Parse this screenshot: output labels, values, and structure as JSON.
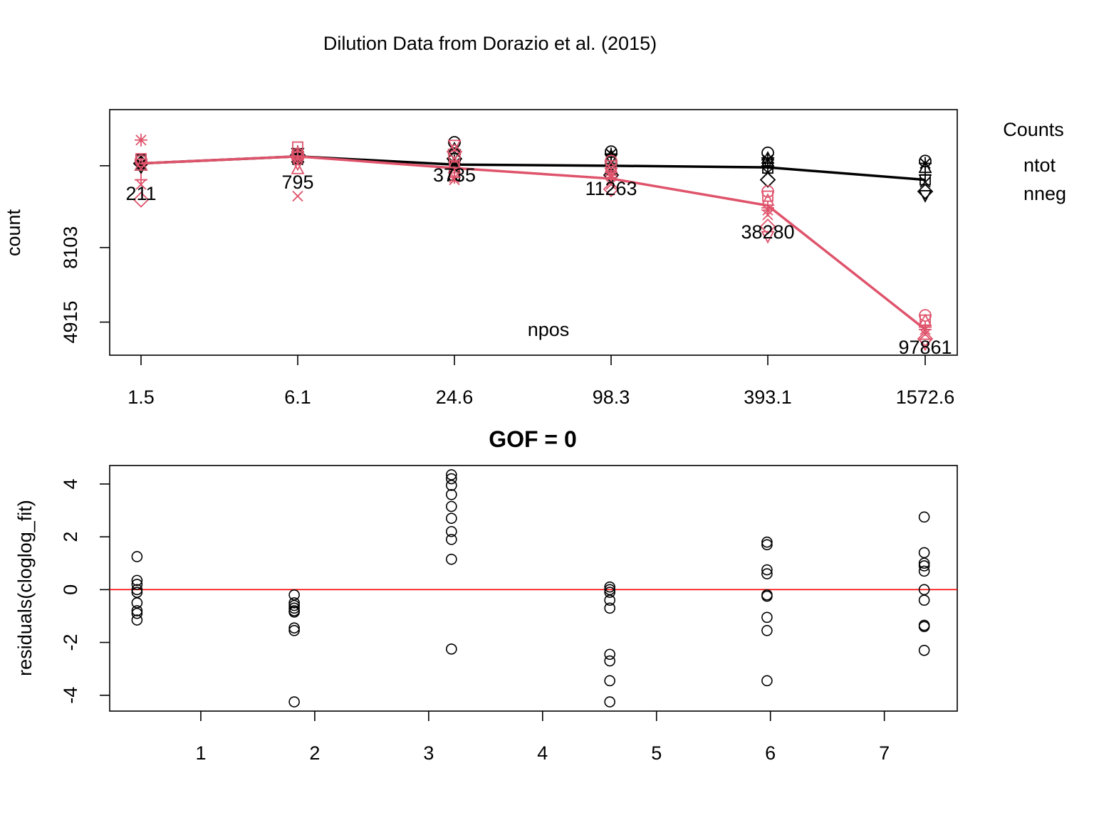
{
  "title": "Dilution Data from Dorazio et al. (2015)",
  "colors": {
    "ntot": "#000000",
    "nneg": "#DF536B",
    "zero_line": "#FF0000"
  },
  "chart_data": [
    {
      "type": "line",
      "ylabel": "count",
      "xlabel": "npos",
      "x_categories": [
        "1.5",
        "6.1",
        "24.6",
        "98.3",
        "393.1",
        "1572.6"
      ],
      "yticks": [
        4915,
        8103
      ],
      "ylim": [
        3500,
        14000
      ],
      "npos_labels": [
        "211",
        "795",
        "3735",
        "11263",
        "38280",
        "97861"
      ],
      "legend": {
        "title": "Counts",
        "placement": "right",
        "entries": [
          "ntot",
          "nneg"
        ]
      },
      "series": [
        {
          "name": "ntot",
          "line": [
            11700,
            12000,
            11650,
            11600,
            11530,
            11000
          ],
          "points": [
            [
              11800,
              11600,
              11750,
              11650,
              11700,
              11550,
              11850,
              11700
            ],
            [
              12100,
              11950,
              12200,
              11850,
              12050,
              12150,
              11900,
              12000
            ],
            [
              12600,
              12300,
              11800,
              11500,
              11900,
              12100,
              11200,
              11700
            ],
            [
              12200,
              12000,
              11700,
              11400,
              11200,
              11900,
              11600,
              12100
            ],
            [
              12150,
              11900,
              11600,
              11300,
              11000,
              11750,
              11500,
              11850
            ],
            [
              11800,
              11500,
              11200,
              10900,
              10500,
              10350,
              11000,
              11700
            ]
          ]
        },
        {
          "name": "nneg",
          "line": [
            11700,
            12000,
            11500,
            11050,
            9900,
            4600
          ],
          "points": [
            [
              11800,
              11600,
              11000,
              10800,
              10150,
              11700,
              11900,
              12700
            ],
            [
              12100,
              11450,
              12200,
              10300,
              12000,
              11700,
              12400,
              11900
            ],
            [
              12000,
              11700,
              11300,
              11000,
              12200,
              12500,
              11600,
              11100
            ],
            [
              11800,
              11500,
              11100,
              10800,
              10600,
              11300,
              11600,
              11200
            ],
            [
              10500,
              10100,
              9800,
              9500,
              9000,
              8600,
              10300,
              9700
            ],
            [
              5200,
              4950,
              4700,
              4400,
              4200,
              4000,
              5000,
              4600
            ]
          ]
        }
      ]
    },
    {
      "type": "scatter",
      "title": "GOF =  0",
      "ylabel": "residuals(cloglog_fit)",
      "xlabel": "",
      "xlim": [
        0.2,
        7.64
      ],
      "ylim": [
        -4.6,
        4.7
      ],
      "xticks": [
        1,
        2,
        3,
        4,
        5,
        6,
        7
      ],
      "yticks": [
        -4,
        -2,
        0,
        2,
        4
      ],
      "reference_line": 0,
      "groups": [
        {
          "x": 0.44,
          "y": [
            1.25,
            0.35,
            0.2,
            0.0,
            -0.1,
            -0.5,
            -0.8,
            -0.9,
            -1.15
          ]
        },
        {
          "x": 1.82,
          "y": [
            -0.2,
            -0.5,
            -0.6,
            -0.7,
            -0.8,
            -0.85,
            -1.45,
            -1.55,
            -4.25
          ]
        },
        {
          "x": 3.2,
          "y": [
            4.35,
            4.2,
            3.95,
            3.6,
            3.15,
            2.7,
            2.2,
            1.9,
            1.15,
            -2.25
          ]
        },
        {
          "x": 4.59,
          "y": [
            0.1,
            0.0,
            -0.1,
            -0.4,
            -0.7,
            -2.45,
            -2.7,
            -3.45,
            -4.25
          ]
        },
        {
          "x": 5.97,
          "y": [
            1.8,
            1.7,
            0.75,
            0.6,
            -0.2,
            -0.25,
            -1.05,
            -1.55,
            -3.45
          ]
        },
        {
          "x": 7.35,
          "y": [
            2.75,
            1.4,
            1.0,
            0.9,
            0.7,
            0.0,
            -0.4,
            -1.35,
            -1.4,
            -2.3
          ]
        }
      ]
    }
  ]
}
